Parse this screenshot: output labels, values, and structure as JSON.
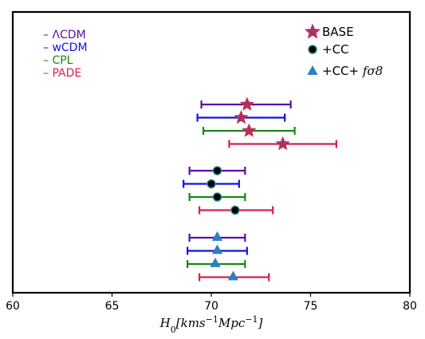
{
  "chart_data": {
    "type": "errorbar",
    "xlabel": "H_0[kms^{-1}Mpc^{-1}]",
    "xlim": [
      60,
      80
    ],
    "xticks": [
      60,
      65,
      70,
      75,
      80
    ],
    "ylabel": "",
    "grid": false,
    "models": [
      {
        "name": "ΛCDM",
        "legend_label": "– ΛCDM",
        "color": "#5b0f9e"
      },
      {
        "name": "wCDM",
        "legend_label": "– wCDM",
        "color": "#1212e6"
      },
      {
        "name": "CPL",
        "legend_label": "– CPL",
        "color": "#138a13"
      },
      {
        "name": "PADE",
        "legend_label": "– PADE",
        "color": "#d6204a"
      }
    ],
    "datasets": [
      {
        "name": "BASE",
        "label": "BASE",
        "marker": "star",
        "marker_color": "#2a6fb0",
        "marker_edge": "#d6204a",
        "points": [
          {
            "model": "ΛCDM",
            "value": 71.8,
            "low": 69.5,
            "high": 74.0
          },
          {
            "model": "wCDM",
            "value": 71.5,
            "low": 69.3,
            "high": 73.7
          },
          {
            "model": "CPL",
            "value": 71.9,
            "low": 69.6,
            "high": 74.2
          },
          {
            "model": "PADE",
            "value": 73.6,
            "low": 70.9,
            "high": 76.3
          }
        ]
      },
      {
        "name": "+CC",
        "label": "+CC",
        "marker": "circle",
        "marker_color": "#000000",
        "marker_edge": "#2a8a8a",
        "points": [
          {
            "model": "ΛCDM",
            "value": 70.3,
            "low": 68.9,
            "high": 71.7
          },
          {
            "model": "wCDM",
            "value": 70.0,
            "low": 68.6,
            "high": 71.4
          },
          {
            "model": "CPL",
            "value": 70.3,
            "low": 68.9,
            "high": 71.7
          },
          {
            "model": "PADE",
            "value": 71.2,
            "low": 69.4,
            "high": 73.1
          }
        ]
      },
      {
        "name": "+CC+ fσ8",
        "label_prefix": "+CC+ ",
        "label_math": "fσ8",
        "marker": "triangle",
        "marker_color": "#2a80c0",
        "marker_edge": "#2a80c0",
        "points": [
          {
            "model": "ΛCDM",
            "value": 70.3,
            "low": 68.9,
            "high": 71.7
          },
          {
            "model": "wCDM",
            "value": 70.3,
            "low": 68.8,
            "high": 71.8
          },
          {
            "model": "CPL",
            "value": 70.2,
            "low": 68.8,
            "high": 71.7
          },
          {
            "model": "PADE",
            "value": 71.1,
            "low": 69.4,
            "high": 72.9
          }
        ]
      }
    ]
  }
}
